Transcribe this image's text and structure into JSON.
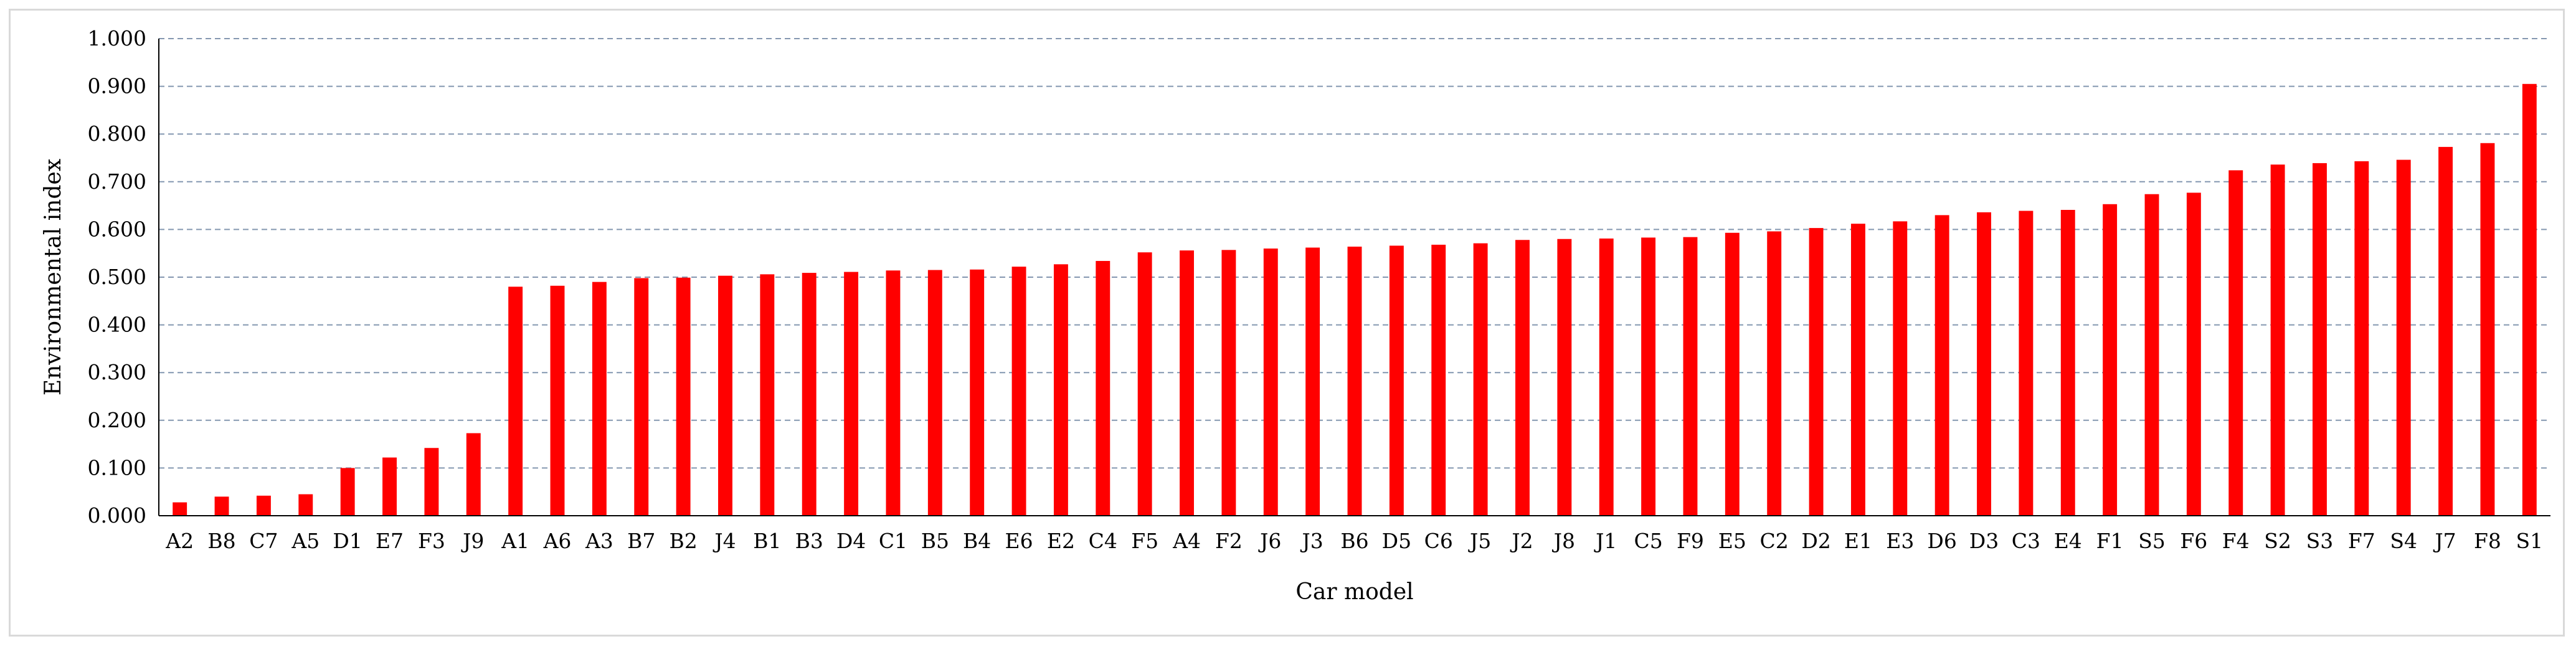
{
  "chart_data": {
    "type": "bar",
    "xlabel": "Car model",
    "ylabel": "Environmental index",
    "ylim": [
      0,
      1
    ],
    "yticks": [
      "0.000",
      "0.100",
      "0.200",
      "0.300",
      "0.400",
      "0.500",
      "0.600",
      "0.700",
      "0.800",
      "0.900",
      "1.000"
    ],
    "grid": true,
    "legend": "none",
    "bar_color": "#ff0000",
    "grid_color": "#8497b0",
    "categories": [
      "A2",
      "B8",
      "C7",
      "A5",
      "D1",
      "E7",
      "F3",
      "J9",
      "A1",
      "A6",
      "A3",
      "B7",
      "B2",
      "J4",
      "B1",
      "B3",
      "D4",
      "C1",
      "B5",
      "B4",
      "E6",
      "E2",
      "C4",
      "F5",
      "A4",
      "F2",
      "J6",
      "J3",
      "B6",
      "D5",
      "C6",
      "J5",
      "J2",
      "J8",
      "J1",
      "C5",
      "F9",
      "E5",
      "C2",
      "D2",
      "E1",
      "E3",
      "D6",
      "D3",
      "C3",
      "E4",
      "F1",
      "S5",
      "F6",
      "F4",
      "S2",
      "S3",
      "F7",
      "S4",
      "J7",
      "F8",
      "S1"
    ],
    "values": [
      0.028,
      0.04,
      0.042,
      0.045,
      0.1,
      0.122,
      0.142,
      0.173,
      0.48,
      0.482,
      0.49,
      0.498,
      0.499,
      0.503,
      0.506,
      0.509,
      0.511,
      0.514,
      0.515,
      0.516,
      0.522,
      0.527,
      0.534,
      0.552,
      0.556,
      0.557,
      0.56,
      0.562,
      0.564,
      0.566,
      0.568,
      0.571,
      0.578,
      0.58,
      0.581,
      0.583,
      0.584,
      0.593,
      0.596,
      0.603,
      0.612,
      0.617,
      0.63,
      0.636,
      0.639,
      0.641,
      0.653,
      0.674,
      0.677,
      0.724,
      0.736,
      0.739,
      0.743,
      0.746,
      0.773,
      0.781,
      0.905
    ]
  }
}
